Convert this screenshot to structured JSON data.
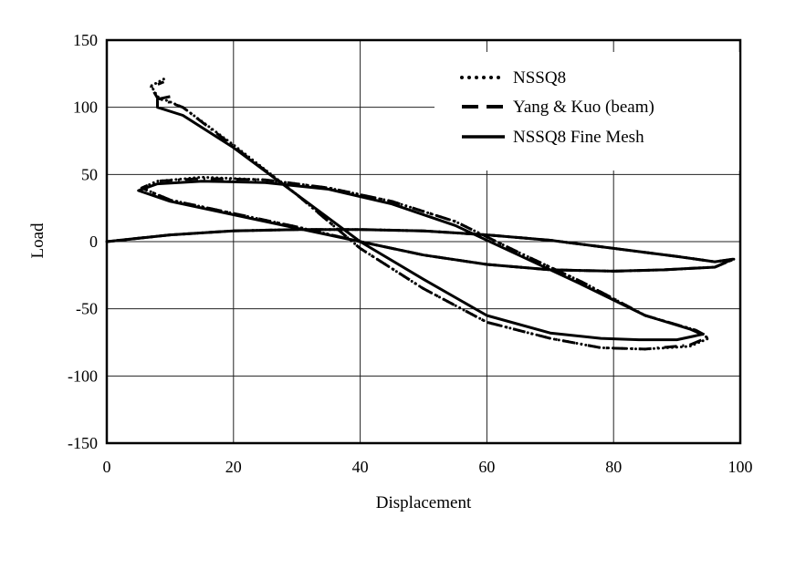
{
  "chart_data": {
    "type": "line",
    "title": "",
    "xlabel": "Displacement",
    "ylabel": "Load",
    "xlim": [
      0,
      100
    ],
    "ylim": [
      -150,
      150
    ],
    "x_ticks": [
      0,
      20,
      40,
      60,
      80,
      100
    ],
    "y_ticks": [
      150,
      100,
      50,
      0,
      -50,
      -100,
      -150
    ],
    "grid": true,
    "legend_position": "top-right",
    "series": [
      {
        "name": "NSSQ8",
        "style": "dotted",
        "color": "#000000",
        "x": [
          0,
          10,
          20,
          30,
          40,
          50,
          60,
          70,
          80,
          90,
          96,
          99,
          96,
          88,
          80,
          70,
          60,
          50,
          40,
          30,
          20,
          10,
          5.5,
          8,
          15,
          25,
          35,
          45,
          55,
          65,
          75,
          85,
          93,
          95,
          92,
          85,
          78,
          70,
          60,
          50,
          40,
          30,
          20,
          12,
          8,
          7,
          9
        ],
        "y": [
          0,
          5,
          8,
          9,
          9,
          8,
          5,
          1,
          -5,
          -11,
          -15,
          -13,
          -19,
          -21,
          -22,
          -21,
          -17,
          -10,
          0,
          11,
          21,
          31,
          40,
          45,
          48,
          46,
          40,
          30,
          15,
          -8,
          -30,
          -55,
          -66,
          -72,
          -78,
          -80,
          -79,
          -72,
          -60,
          -35,
          -5,
          35,
          72,
          100,
          108,
          116,
          121
        ]
      },
      {
        "name": "Yang & Kuo (beam)",
        "style": "dashed",
        "color": "#000000",
        "x": [
          0,
          10,
          20,
          30,
          40,
          50,
          60,
          70,
          80,
          90,
          96,
          99,
          96,
          88,
          80,
          70,
          60,
          50,
          40,
          30,
          20,
          10,
          5.5,
          8,
          15,
          25,
          35,
          45,
          55,
          65,
          75,
          85,
          93,
          95,
          92,
          85,
          78,
          70,
          60,
          50,
          40,
          30,
          20,
          12,
          8,
          7,
          9
        ],
        "y": [
          0,
          5,
          8,
          9,
          9,
          8,
          5,
          1,
          -5,
          -11,
          -15,
          -13,
          -19,
          -21,
          -22,
          -21,
          -17,
          -10,
          0,
          11,
          21,
          31,
          40,
          45,
          47,
          46,
          40,
          30,
          15,
          -8,
          -30,
          -55,
          -66,
          -71,
          -77,
          -80,
          -79,
          -72,
          -60,
          -35,
          -5,
          35,
          71,
          100,
          107,
          115,
          119
        ]
      },
      {
        "name": "NSSQ8 Fine Mesh",
        "style": "solid",
        "color": "#000000",
        "x": [
          0,
          10,
          20,
          30,
          40,
          50,
          60,
          70,
          80,
          90,
          96,
          98.8,
          96,
          88,
          80,
          70,
          60,
          50,
          40,
          30,
          20,
          10,
          5,
          8,
          15,
          25,
          35,
          45,
          55,
          65,
          75,
          85,
          92,
          94,
          90,
          84,
          78,
          70,
          60,
          50,
          40,
          30,
          20,
          12,
          8,
          8,
          10
        ],
        "y": [
          0,
          5,
          8,
          9,
          9,
          8,
          5,
          1,
          -5,
          -11,
          -15,
          -13,
          -19,
          -21,
          -22,
          -21,
          -17,
          -10,
          0,
          10,
          20,
          30,
          38,
          43,
          45,
          44,
          39,
          28,
          12,
          -10,
          -32,
          -55,
          -65,
          -69,
          -73,
          -73,
          -72,
          -68,
          -55,
          -28,
          0,
          35,
          70,
          94,
          100,
          106,
          108
        ]
      }
    ]
  }
}
